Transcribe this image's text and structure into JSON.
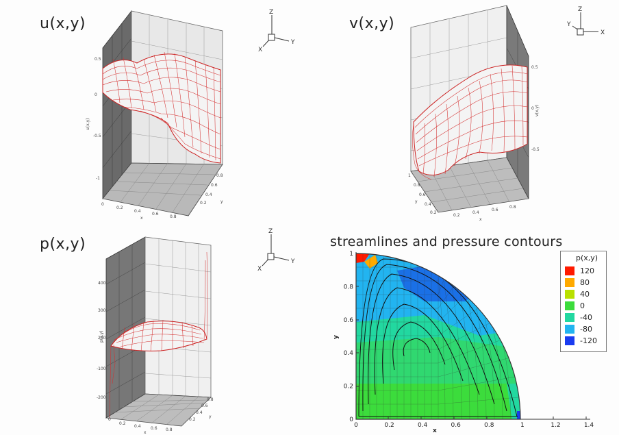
{
  "panels": {
    "u": {
      "title": "u(x,y)",
      "zlabel": "u(x,y)",
      "xlabel": "x",
      "ylabel": "y"
    },
    "v": {
      "title": "v(x,y)",
      "zlabel": "v(x,y)",
      "xlabel": "x",
      "ylabel": "y"
    },
    "p": {
      "title": "p(x,y)",
      "zlabel": "p(x,y)",
      "xlabel": "x",
      "ylabel": "y"
    },
    "stream": {
      "title": "streamlines and pressure contours"
    }
  },
  "triad": {
    "x": "X",
    "y": "Y",
    "z": "Z"
  },
  "legend": {
    "title": "p(x,y)",
    "levels": [
      {
        "label": "120",
        "color": "#ff1a00"
      },
      {
        "label": "80",
        "color": "#ffaa00"
      },
      {
        "label": "40",
        "color": "#b8e000"
      },
      {
        "label": "0",
        "color": "#3cdc3c"
      },
      {
        "label": "-40",
        "color": "#22d8a0"
      },
      {
        "label": "-80",
        "color": "#22b4f0"
      },
      {
        "label": "-120",
        "color": "#1a3cf0"
      }
    ]
  },
  "chart_data": {
    "type": "contour",
    "title": "streamlines and pressure contours",
    "xlabel": "x",
    "ylabel": "y",
    "xlim": [
      0,
      1.4
    ],
    "ylim": [
      0,
      1
    ],
    "xticks": [
      "0",
      "0.2",
      "0.4",
      "0.6",
      "0.8",
      "1",
      "1.2",
      "1.4"
    ],
    "yticks": [
      "0",
      "0.2",
      "0.4",
      "0.6",
      "0.8",
      "1"
    ],
    "domain": "quarter circle of radius 1",
    "colors": {
      "mesh": "#cc2222",
      "box_left": "#555555",
      "box_back": "#e6e6e6",
      "box_floor": "#b8b8b8"
    }
  }
}
